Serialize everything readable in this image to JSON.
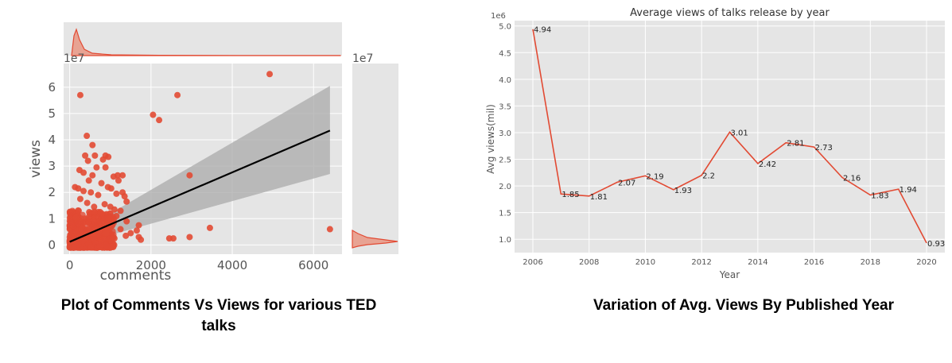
{
  "captions": {
    "left": "Plot of Comments Vs Views for various TED talks",
    "right": "Variation of Avg. Views By Published Year"
  },
  "chart_data": [
    {
      "type": "scatter",
      "title": "",
      "xlabel": "comments",
      "ylabel": "views",
      "y_scale_label": "1e7",
      "marginal_y_scale_label": "1e7",
      "xlim": [
        -150,
        6700
      ],
      "ylim": [
        -0.35,
        6.9
      ],
      "xticks": [
        0,
        2000,
        4000,
        6000
      ],
      "yticks": [
        0,
        1,
        2,
        3,
        4,
        5,
        6
      ],
      "points": [
        [
          6404,
          0.6
        ],
        [
          4920,
          6.5
        ],
        [
          2650,
          5.7
        ],
        [
          2050,
          4.95
        ],
        [
          2200,
          4.75
        ],
        [
          2950,
          2.65
        ],
        [
          3450,
          0.65
        ],
        [
          2450,
          0.25
        ],
        [
          2550,
          0.25
        ],
        [
          2950,
          0.3
        ],
        [
          1750,
          0.2
        ],
        [
          1650,
          0.55
        ],
        [
          1700,
          0.75
        ],
        [
          1500,
          0.45
        ],
        [
          1400,
          1.65
        ],
        [
          1300,
          2.65
        ],
        [
          1200,
          2.45
        ],
        [
          1700,
          0.3
        ],
        [
          260,
          5.7
        ],
        [
          420,
          4.15
        ],
        [
          560,
          3.8
        ],
        [
          380,
          3.4
        ],
        [
          620,
          3.4
        ],
        [
          880,
          3.4
        ],
        [
          820,
          3.25
        ],
        [
          950,
          3.35
        ],
        [
          450,
          3.2
        ],
        [
          240,
          2.85
        ],
        [
          340,
          2.75
        ],
        [
          660,
          2.95
        ],
        [
          560,
          2.65
        ],
        [
          880,
          2.95
        ],
        [
          1080,
          2.6
        ],
        [
          1180,
          2.65
        ],
        [
          470,
          2.45
        ],
        [
          780,
          2.35
        ],
        [
          130,
          2.2
        ],
        [
          210,
          2.15
        ],
        [
          940,
          2.2
        ],
        [
          1020,
          2.15
        ],
        [
          1300,
          2.0
        ],
        [
          1350,
          1.85
        ],
        [
          1150,
          1.95
        ],
        [
          340,
          2.05
        ],
        [
          520,
          2.0
        ],
        [
          700,
          1.9
        ],
        [
          260,
          1.75
        ],
        [
          430,
          1.6
        ],
        [
          860,
          1.55
        ],
        [
          1000,
          1.45
        ],
        [
          1100,
          1.35
        ],
        [
          1250,
          1.3
        ],
        [
          1150,
          1.1
        ],
        [
          600,
          1.45
        ],
        [
          750,
          1.25
        ],
        [
          150,
          1.05
        ],
        [
          220,
          1.3
        ],
        [
          480,
          1.25
        ],
        [
          950,
          0.95
        ],
        [
          1050,
          0.75
        ],
        [
          1250,
          0.6
        ],
        [
          1400,
          0.9
        ],
        [
          1380,
          0.35
        ],
        [
          1100,
          0.25
        ],
        [
          900,
          0.45
        ]
      ],
      "dense_cluster": {
        "x_range": [
          0,
          1100
        ],
        "y_range": [
          -0.1,
          1.6
        ],
        "count": 600
      },
      "fit_line": [
        [
          0,
          0.12
        ],
        [
          6404,
          4.35
        ]
      ],
      "ci_band": {
        "x": [
          0,
          6404
        ],
        "lower": [
          -0.05,
          2.7
        ],
        "upper": [
          0.3,
          6.05
        ]
      },
      "colors": {
        "points": "#e24a33",
        "line": "#000000",
        "band": "#aaaaaa",
        "background": "#e5e5e5",
        "grid": "#ffffff"
      }
    },
    {
      "type": "line",
      "title": "Average views of talks release by year",
      "xlabel": "Year",
      "ylabel": "Avg views(mil)",
      "y_scale_label": "1e6",
      "xlim": [
        2005.35,
        2020.65
      ],
      "ylim": [
        0.75,
        5.1
      ],
      "xticks": [
        2006,
        2008,
        2010,
        2012,
        2014,
        2016,
        2018,
        2020
      ],
      "yticks": [
        "1.0",
        "1.5",
        "2.0",
        "2.5",
        "3.0",
        "3.5",
        "4.0",
        "4.5",
        "5.0"
      ],
      "x": [
        2006,
        2007,
        2008,
        2009,
        2010,
        2011,
        2012,
        2013,
        2014,
        2015,
        2016,
        2017,
        2018,
        2019,
        2020
      ],
      "y": [
        4.94,
        1.85,
        1.81,
        2.07,
        2.19,
        1.93,
        2.2,
        3.01,
        2.42,
        2.81,
        2.73,
        2.16,
        1.83,
        1.94,
        0.93
      ],
      "labels": [
        "4.94",
        "1.85",
        "1.81",
        "2.07",
        "2.19",
        "1.93",
        "2.2",
        "3.01",
        "2.42",
        "2.81",
        "2.73",
        "2.16",
        "1.83",
        "1.94",
        "0.93"
      ],
      "colors": {
        "line": "#e24a33",
        "background": "#e5e5e5",
        "grid": "#ffffff"
      }
    }
  ]
}
